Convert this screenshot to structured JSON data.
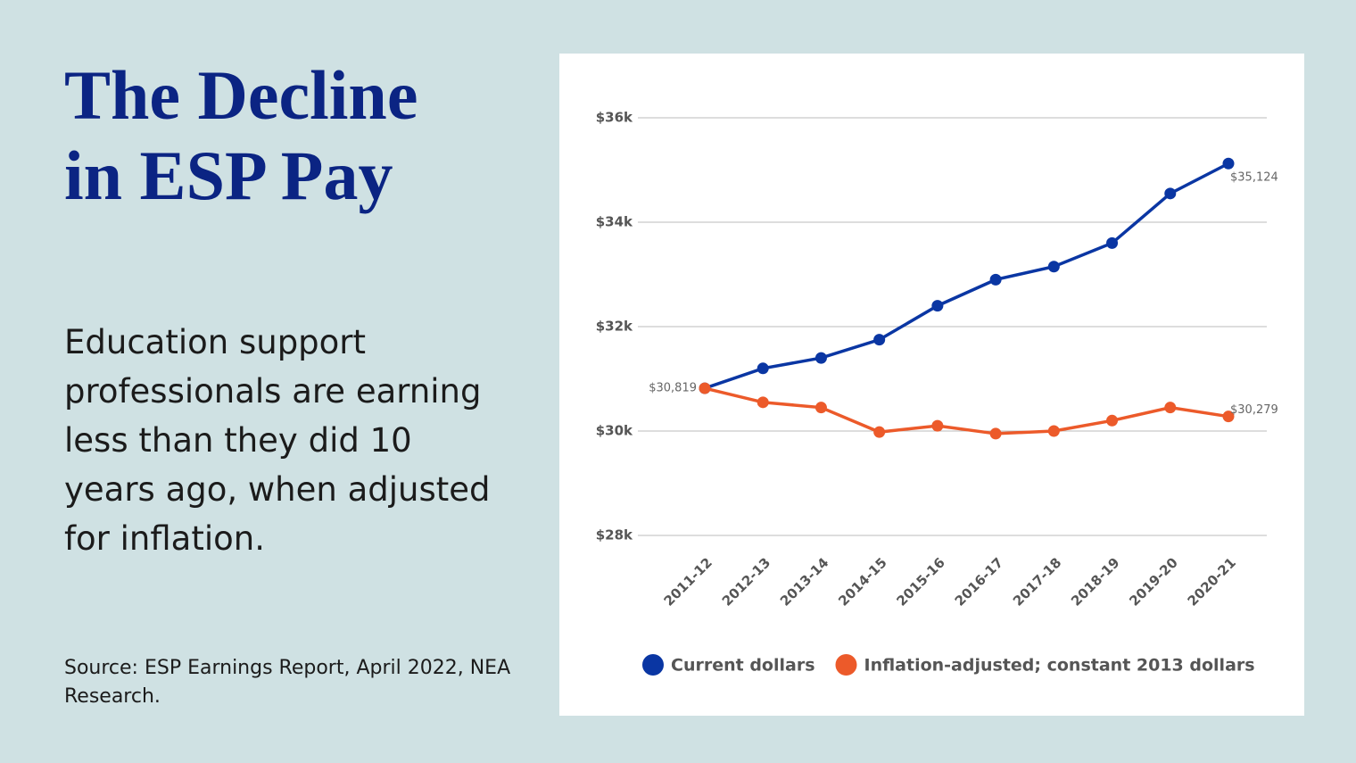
{
  "header": {
    "title": "The Decline in ESP Pay",
    "description": "Education support professionals are earning less than they did 10 years ago, when adjusted for inflation.",
    "source": "Source: ESP Earnings Report, April 2022, NEA Research."
  },
  "chart_data": {
    "type": "line",
    "categories": [
      "2011-12",
      "2012-13",
      "2013-14",
      "2014-15",
      "2015-16",
      "2016-17",
      "2017-18",
      "2018-19",
      "2019-20",
      "2020-21"
    ],
    "series": [
      {
        "name": "Current dollars",
        "color": "#0a36a3",
        "values": [
          30819,
          31200,
          31400,
          31750,
          32400,
          32900,
          33150,
          33600,
          34550,
          35124
        ],
        "value_labels": [
          "$30,819",
          null,
          null,
          null,
          null,
          null,
          null,
          null,
          null,
          "$35,124"
        ]
      },
      {
        "name": "Inflation-adjusted; constant 2013 dollars",
        "color": "#ec5a2a",
        "values": [
          30819,
          30550,
          30450,
          29980,
          30100,
          29950,
          30000,
          30200,
          30450,
          30279
        ],
        "value_labels": [
          null,
          null,
          null,
          null,
          null,
          null,
          null,
          null,
          null,
          "$30,279"
        ]
      }
    ],
    "ylim": [
      28000,
      36000
    ],
    "yticks": [
      {
        "value": 28000,
        "label": "$28k"
      },
      {
        "value": 30000,
        "label": "$30k"
      },
      {
        "value": 32000,
        "label": "$32k"
      },
      {
        "value": 34000,
        "label": "$34k"
      },
      {
        "value": 36000,
        "label": "$36k"
      }
    ],
    "grid": true,
    "legend": "bottom"
  }
}
